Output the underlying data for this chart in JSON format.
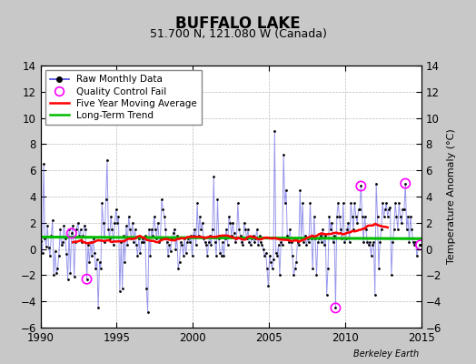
{
  "title": "BUFFALO LAKE",
  "subtitle": "51.700 N, 121.080 W (Canada)",
  "ylabel": "Temperature Anomaly (°C)",
  "watermark": "Berkeley Earth",
  "xlim": [
    1990,
    2015
  ],
  "ylim": [
    -6,
    14
  ],
  "yticks": [
    -6,
    -4,
    -2,
    0,
    2,
    4,
    6,
    8,
    10,
    12,
    14
  ],
  "xticks": [
    1990,
    1995,
    2000,
    2005,
    2010,
    2015
  ],
  "fig_bg_color": "#c8c8c8",
  "plot_bg_color": "#ffffff",
  "raw_line_color": "#4444dd",
  "raw_line_alpha": 0.55,
  "raw_dot_color": "#000000",
  "ma_color": "#ff0000",
  "trend_color": "#00bb00",
  "qc_color": "#ff00ff",
  "trend_intercept": 0.85,
  "trend_slope": -0.005,
  "raw_data": [
    [
      1990.042,
      0.6
    ],
    [
      1990.125,
      -0.3
    ],
    [
      1990.208,
      6.5
    ],
    [
      1990.292,
      0.8
    ],
    [
      1990.375,
      0.2
    ],
    [
      1990.458,
      1.8
    ],
    [
      1990.542,
      0.1
    ],
    [
      1990.625,
      -0.5
    ],
    [
      1990.708,
      1.0
    ],
    [
      1990.792,
      2.2
    ],
    [
      1990.875,
      -2.0
    ],
    [
      1990.958,
      -0.2
    ],
    [
      1991.042,
      -1.8
    ],
    [
      1991.125,
      -1.5
    ],
    [
      1991.208,
      -0.5
    ],
    [
      1991.292,
      1.5
    ],
    [
      1991.375,
      0.3
    ],
    [
      1991.458,
      0.5
    ],
    [
      1991.542,
      1.8
    ],
    [
      1991.625,
      0.8
    ],
    [
      1991.708,
      -0.4
    ],
    [
      1991.792,
      -2.3
    ],
    [
      1991.875,
      1.5
    ],
    [
      1991.958,
      -1.8
    ],
    [
      1992.042,
      1.2
    ],
    [
      1992.125,
      1.8
    ],
    [
      1992.208,
      -2.1
    ],
    [
      1992.292,
      0.5
    ],
    [
      1992.375,
      1.5
    ],
    [
      1992.458,
      2.0
    ],
    [
      1992.542,
      1.0
    ],
    [
      1992.625,
      1.5
    ],
    [
      1992.708,
      0.5
    ],
    [
      1992.792,
      1.0
    ],
    [
      1992.875,
      1.8
    ],
    [
      1992.958,
      1.5
    ],
    [
      1993.042,
      -2.3
    ],
    [
      1993.125,
      0.3
    ],
    [
      1993.208,
      -1.0
    ],
    [
      1993.292,
      0.5
    ],
    [
      1993.375,
      -0.5
    ],
    [
      1993.458,
      0.8
    ],
    [
      1993.542,
      -0.3
    ],
    [
      1993.625,
      -1.5
    ],
    [
      1993.708,
      -0.8
    ],
    [
      1993.792,
      -4.5
    ],
    [
      1993.875,
      -1.0
    ],
    [
      1993.958,
      -1.5
    ],
    [
      1994.042,
      3.5
    ],
    [
      1994.125,
      2.0
    ],
    [
      1994.208,
      0.5
    ],
    [
      1994.292,
      3.8
    ],
    [
      1994.375,
      6.8
    ],
    [
      1994.458,
      1.5
    ],
    [
      1994.542,
      0.8
    ],
    [
      1994.625,
      2.5
    ],
    [
      1994.708,
      1.5
    ],
    [
      1994.792,
      0.3
    ],
    [
      1994.875,
      2.0
    ],
    [
      1994.958,
      3.0
    ],
    [
      1995.042,
      2.0
    ],
    [
      1995.125,
      2.5
    ],
    [
      1995.208,
      -3.2
    ],
    [
      1995.292,
      0.5
    ],
    [
      1995.375,
      -3.0
    ],
    [
      1995.458,
      1.0
    ],
    [
      1995.542,
      -1.0
    ],
    [
      1995.625,
      1.8
    ],
    [
      1995.708,
      0.3
    ],
    [
      1995.792,
      2.5
    ],
    [
      1995.875,
      1.5
    ],
    [
      1995.958,
      0.8
    ],
    [
      1996.042,
      2.0
    ],
    [
      1996.125,
      0.5
    ],
    [
      1996.208,
      1.5
    ],
    [
      1996.292,
      0.3
    ],
    [
      1996.375,
      -0.5
    ],
    [
      1996.458,
      0.8
    ],
    [
      1996.542,
      -0.3
    ],
    [
      1996.625,
      0.5
    ],
    [
      1996.708,
      0.8
    ],
    [
      1996.792,
      0.5
    ],
    [
      1996.875,
      1.0
    ],
    [
      1996.958,
      -3.0
    ],
    [
      1997.042,
      -4.8
    ],
    [
      1997.125,
      1.5
    ],
    [
      1997.208,
      -0.5
    ],
    [
      1997.292,
      1.5
    ],
    [
      1997.375,
      1.0
    ],
    [
      1997.458,
      2.5
    ],
    [
      1997.542,
      1.5
    ],
    [
      1997.625,
      0.8
    ],
    [
      1997.708,
      2.0
    ],
    [
      1997.792,
      0.5
    ],
    [
      1997.875,
      0.8
    ],
    [
      1997.958,
      3.8
    ],
    [
      1998.042,
      3.0
    ],
    [
      1998.125,
      2.5
    ],
    [
      1998.208,
      1.5
    ],
    [
      1998.292,
      0.5
    ],
    [
      1998.375,
      -0.5
    ],
    [
      1998.458,
      0.3
    ],
    [
      1998.542,
      -0.2
    ],
    [
      1998.625,
      0.8
    ],
    [
      1998.708,
      1.2
    ],
    [
      1998.792,
      1.5
    ],
    [
      1998.875,
      0.0
    ],
    [
      1998.958,
      1.0
    ],
    [
      1999.042,
      -1.5
    ],
    [
      1999.125,
      -1.0
    ],
    [
      1999.208,
      0.5
    ],
    [
      1999.292,
      0.3
    ],
    [
      1999.375,
      -0.5
    ],
    [
      1999.458,
      0.8
    ],
    [
      1999.542,
      -0.3
    ],
    [
      1999.625,
      0.5
    ],
    [
      1999.708,
      0.8
    ],
    [
      1999.792,
      0.5
    ],
    [
      1999.875,
      1.0
    ],
    [
      1999.958,
      -0.5
    ],
    [
      2000.042,
      1.0
    ],
    [
      2000.125,
      1.5
    ],
    [
      2000.208,
      0.3
    ],
    [
      2000.292,
      3.5
    ],
    [
      2000.375,
      1.0
    ],
    [
      2000.458,
      2.5
    ],
    [
      2000.542,
      1.5
    ],
    [
      2000.625,
      2.0
    ],
    [
      2000.708,
      0.8
    ],
    [
      2000.792,
      0.5
    ],
    [
      2000.875,
      0.3
    ],
    [
      2000.958,
      -0.5
    ],
    [
      2001.042,
      0.5
    ],
    [
      2001.125,
      1.0
    ],
    [
      2001.208,
      0.3
    ],
    [
      2001.292,
      1.5
    ],
    [
      2001.375,
      5.5
    ],
    [
      2001.458,
      0.5
    ],
    [
      2001.542,
      -0.5
    ],
    [
      2001.625,
      3.8
    ],
    [
      2001.708,
      0.8
    ],
    [
      2001.792,
      -0.3
    ],
    [
      2001.875,
      -0.5
    ],
    [
      2001.958,
      0.5
    ],
    [
      2002.042,
      -0.5
    ],
    [
      2002.125,
      0.8
    ],
    [
      2002.208,
      1.5
    ],
    [
      2002.292,
      0.3
    ],
    [
      2002.375,
      2.5
    ],
    [
      2002.458,
      2.0
    ],
    [
      2002.542,
      1.0
    ],
    [
      2002.625,
      2.0
    ],
    [
      2002.708,
      1.2
    ],
    [
      2002.792,
      0.5
    ],
    [
      2002.875,
      0.8
    ],
    [
      2002.958,
      3.5
    ],
    [
      2003.042,
      1.5
    ],
    [
      2003.125,
      1.0
    ],
    [
      2003.208,
      0.5
    ],
    [
      2003.292,
      0.3
    ],
    [
      2003.375,
      2.0
    ],
    [
      2003.458,
      1.5
    ],
    [
      2003.542,
      0.8
    ],
    [
      2003.625,
      1.5
    ],
    [
      2003.708,
      0.5
    ],
    [
      2003.792,
      0.3
    ],
    [
      2003.875,
      0.8
    ],
    [
      2003.958,
      1.0
    ],
    [
      2004.042,
      0.5
    ],
    [
      2004.125,
      0.8
    ],
    [
      2004.208,
      1.5
    ],
    [
      2004.292,
      0.3
    ],
    [
      2004.375,
      1.0
    ],
    [
      2004.458,
      0.5
    ],
    [
      2004.542,
      0.3
    ],
    [
      2004.625,
      0.0
    ],
    [
      2004.708,
      -0.5
    ],
    [
      2004.792,
      -0.3
    ],
    [
      2004.875,
      -1.5
    ],
    [
      2004.958,
      -2.8
    ],
    [
      2005.042,
      -0.5
    ],
    [
      2005.125,
      -1.0
    ],
    [
      2005.208,
      -1.5
    ],
    [
      2005.292,
      -0.8
    ],
    [
      2005.375,
      9.0
    ],
    [
      2005.458,
      -0.3
    ],
    [
      2005.542,
      -0.5
    ],
    [
      2005.625,
      0.3
    ],
    [
      2005.708,
      -2.0
    ],
    [
      2005.792,
      0.5
    ],
    [
      2005.875,
      0.3
    ],
    [
      2005.958,
      7.2
    ],
    [
      2006.042,
      3.5
    ],
    [
      2006.125,
      4.5
    ],
    [
      2006.208,
      1.0
    ],
    [
      2006.292,
      0.5
    ],
    [
      2006.375,
      1.5
    ],
    [
      2006.458,
      0.5
    ],
    [
      2006.542,
      -0.5
    ],
    [
      2006.625,
      -2.0
    ],
    [
      2006.708,
      -1.5
    ],
    [
      2006.792,
      -1.0
    ],
    [
      2006.875,
      0.5
    ],
    [
      2006.958,
      0.3
    ],
    [
      2007.042,
      4.5
    ],
    [
      2007.125,
      0.8
    ],
    [
      2007.208,
      3.5
    ],
    [
      2007.292,
      0.5
    ],
    [
      2007.375,
      1.0
    ],
    [
      2007.458,
      0.3
    ],
    [
      2007.542,
      0.8
    ],
    [
      2007.625,
      0.5
    ],
    [
      2007.708,
      3.5
    ],
    [
      2007.792,
      0.8
    ],
    [
      2007.875,
      -1.5
    ],
    [
      2007.958,
      2.5
    ],
    [
      2008.042,
      0.8
    ],
    [
      2008.125,
      -2.0
    ],
    [
      2008.208,
      0.5
    ],
    [
      2008.292,
      0.8
    ],
    [
      2008.375,
      1.0
    ],
    [
      2008.458,
      0.5
    ],
    [
      2008.542,
      1.5
    ],
    [
      2008.625,
      0.3
    ],
    [
      2008.708,
      1.0
    ],
    [
      2008.792,
      -3.5
    ],
    [
      2008.875,
      -1.5
    ],
    [
      2008.958,
      2.5
    ],
    [
      2009.042,
      1.5
    ],
    [
      2009.125,
      2.0
    ],
    [
      2009.208,
      0.5
    ],
    [
      2009.292,
      1.0
    ],
    [
      2009.375,
      -4.5
    ],
    [
      2009.458,
      2.5
    ],
    [
      2009.542,
      3.5
    ],
    [
      2009.625,
      2.5
    ],
    [
      2009.708,
      1.5
    ],
    [
      2009.792,
      0.8
    ],
    [
      2009.875,
      3.5
    ],
    [
      2009.958,
      0.5
    ],
    [
      2010.042,
      0.8
    ],
    [
      2010.125,
      1.5
    ],
    [
      2010.208,
      2.0
    ],
    [
      2010.292,
      0.5
    ],
    [
      2010.375,
      3.5
    ],
    [
      2010.458,
      2.5
    ],
    [
      2010.542,
      1.5
    ],
    [
      2010.625,
      3.5
    ],
    [
      2010.708,
      2.5
    ],
    [
      2010.792,
      2.0
    ],
    [
      2010.875,
      3.0
    ],
    [
      2010.958,
      3.0
    ],
    [
      2011.042,
      4.8
    ],
    [
      2011.125,
      2.5
    ],
    [
      2011.208,
      0.5
    ],
    [
      2011.292,
      2.5
    ],
    [
      2011.375,
      1.5
    ],
    [
      2011.458,
      0.5
    ],
    [
      2011.542,
      0.3
    ],
    [
      2011.625,
      0.5
    ],
    [
      2011.708,
      -0.5
    ],
    [
      2011.792,
      0.3
    ],
    [
      2011.875,
      0.5
    ],
    [
      2011.958,
      -3.5
    ],
    [
      2012.042,
      5.0
    ],
    [
      2012.125,
      2.5
    ],
    [
      2012.208,
      -1.5
    ],
    [
      2012.292,
      0.5
    ],
    [
      2012.375,
      1.5
    ],
    [
      2012.458,
      3.5
    ],
    [
      2012.542,
      2.5
    ],
    [
      2012.625,
      3.0
    ],
    [
      2012.708,
      3.5
    ],
    [
      2012.792,
      2.5
    ],
    [
      2012.875,
      3.0
    ],
    [
      2012.958,
      3.2
    ],
    [
      2013.042,
      -2.0
    ],
    [
      2013.125,
      0.5
    ],
    [
      2013.208,
      1.5
    ],
    [
      2013.292,
      3.5
    ],
    [
      2013.375,
      2.5
    ],
    [
      2013.458,
      1.5
    ],
    [
      2013.542,
      3.5
    ],
    [
      2013.625,
      2.5
    ],
    [
      2013.708,
      2.0
    ],
    [
      2013.792,
      3.0
    ],
    [
      2013.875,
      3.0
    ],
    [
      2013.958,
      5.0
    ],
    [
      2014.042,
      1.5
    ],
    [
      2014.125,
      2.5
    ],
    [
      2014.208,
      0.5
    ],
    [
      2014.292,
      2.5
    ],
    [
      2014.375,
      1.5
    ],
    [
      2014.458,
      0.5
    ],
    [
      2014.542,
      0.3
    ],
    [
      2014.625,
      0.5
    ],
    [
      2014.708,
      -0.5
    ],
    [
      2014.875,
      0.3
    ],
    [
      2014.958,
      0.3
    ]
  ],
  "qc_fails": [
    [
      1992.042,
      1.2
    ],
    [
      1993.042,
      -2.3
    ],
    [
      2009.375,
      -4.5
    ],
    [
      2011.042,
      4.8
    ],
    [
      2013.958,
      5.0
    ],
    [
      2014.958,
      0.3
    ]
  ]
}
